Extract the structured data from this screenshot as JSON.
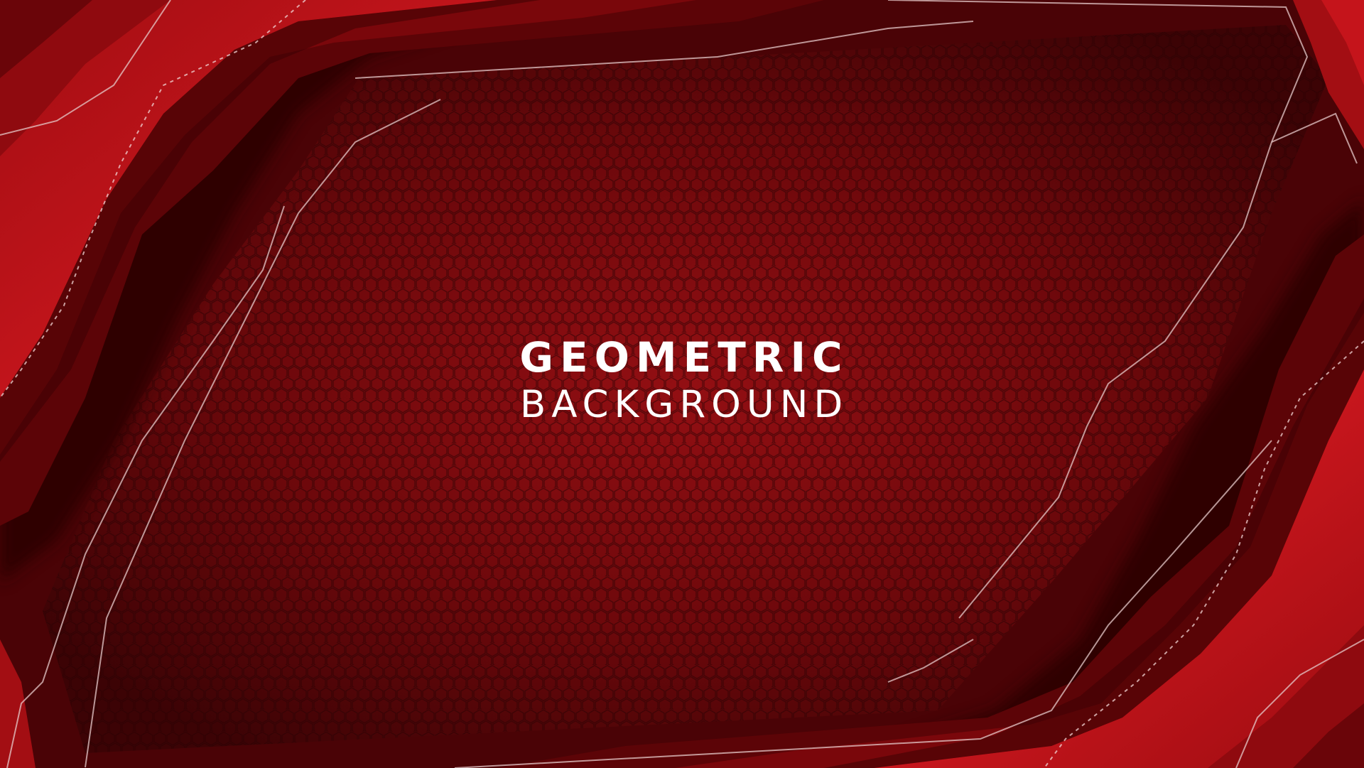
{
  "title": {
    "line1": "GEOMETRIC",
    "line2": "BACKGROUND"
  },
  "colors": {
    "center_dark": "#5a0407",
    "center_light": "#8e0f12",
    "accent_red": "#c5141b",
    "deep_red": "#3a0204",
    "outline": "#e6c9c9",
    "text": "#ffffff"
  }
}
